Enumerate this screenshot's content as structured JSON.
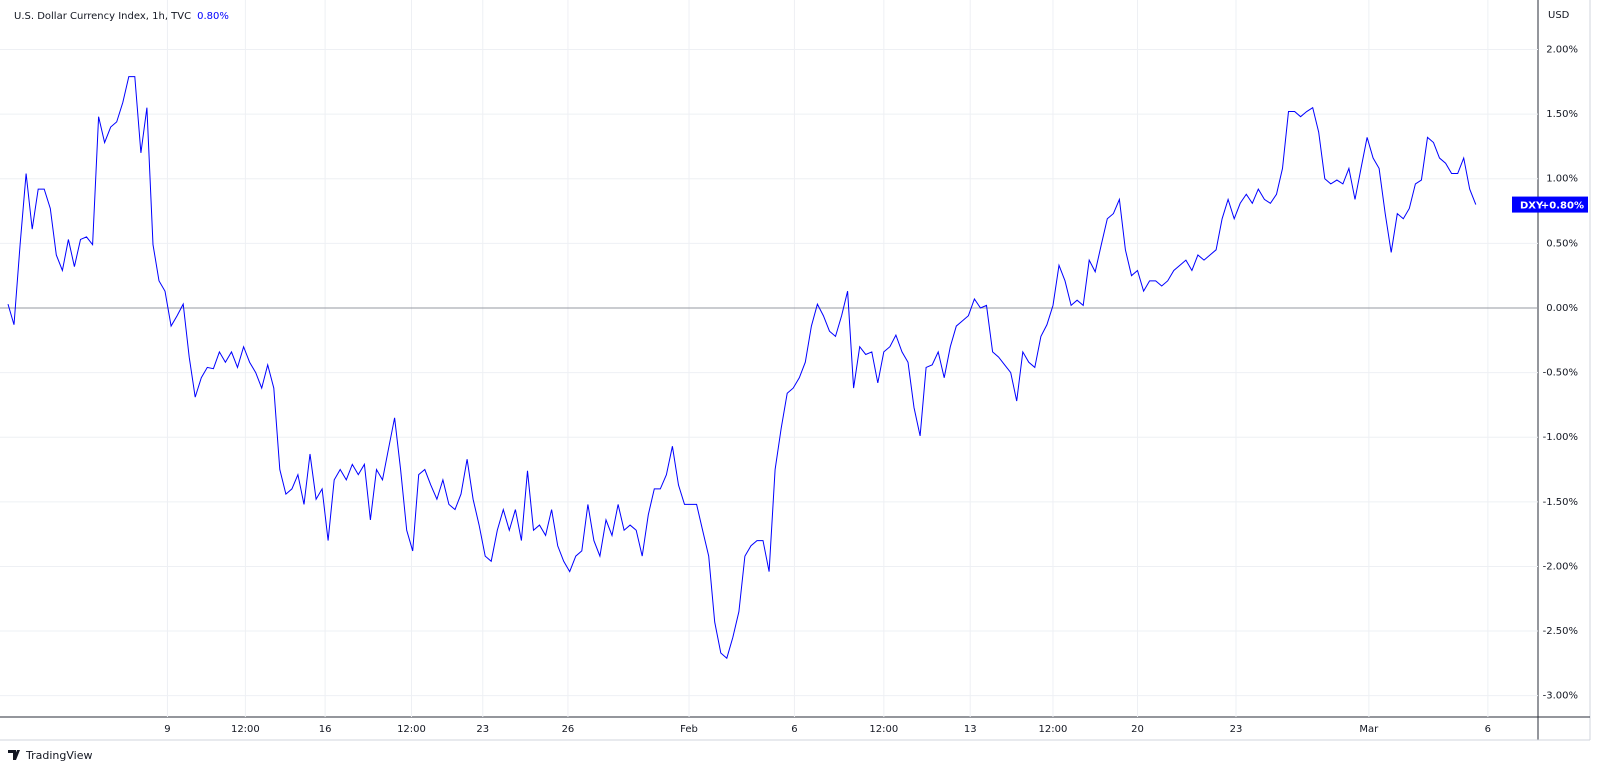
{
  "header": {
    "title": "U.S. Dollar Currency Index, 1h, TVC",
    "change": "0.80%",
    "brand": "TradingView"
  },
  "chart_data": {
    "type": "line",
    "currency": "USD",
    "series": [
      {
        "name": "DXY",
        "color": "#0000ff",
        "last_label": {
          "value": 0.8,
          "label": "+0.80%"
        },
        "values": [
          0.03,
          -0.13,
          0.49,
          1.04,
          0.61,
          0.92,
          0.92,
          0.77,
          0.41,
          0.29,
          0.53,
          0.32,
          0.53,
          0.55,
          0.49,
          1.48,
          1.28,
          1.4,
          1.44,
          1.59,
          1.79,
          1.79,
          1.2,
          1.55,
          0.49,
          0.21,
          0.13,
          -0.14,
          -0.06,
          0.03,
          -0.38,
          -0.69,
          -0.54,
          -0.46,
          -0.47,
          -0.34,
          -0.42,
          -0.34,
          -0.46,
          -0.3,
          -0.42,
          -0.5,
          -0.62,
          -0.44,
          -0.62,
          -1.25,
          -1.44,
          -1.4,
          -1.29,
          -1.52,
          -1.13,
          -1.48,
          -1.4,
          -1.8,
          -1.33,
          -1.25,
          -1.33,
          -1.21,
          -1.29,
          -1.21,
          -1.64,
          -1.25,
          -1.33,
          -1.09,
          -0.85,
          -1.25,
          -1.72,
          -1.88,
          -1.29,
          -1.25,
          -1.37,
          -1.48,
          -1.33,
          -1.52,
          -1.56,
          -1.44,
          -1.17,
          -1.48,
          -1.68,
          -1.92,
          -1.96,
          -1.72,
          -1.56,
          -1.72,
          -1.56,
          -1.8,
          -1.26,
          -1.72,
          -1.68,
          -1.76,
          -1.56,
          -1.84,
          -1.96,
          -2.04,
          -1.92,
          -1.88,
          -1.52,
          -1.8,
          -1.92,
          -1.64,
          -1.76,
          -1.52,
          -1.72,
          -1.68,
          -1.72,
          -1.92,
          -1.6,
          -1.4,
          -1.4,
          -1.29,
          -1.07,
          -1.37,
          -1.52,
          -1.52,
          -1.52,
          -1.72,
          -1.92,
          -2.43,
          -2.67,
          -2.71,
          -2.55,
          -2.35,
          -1.92,
          -1.84,
          -1.8,
          -1.8,
          -2.04,
          -1.25,
          -0.93,
          -0.66,
          -0.62,
          -0.54,
          -0.42,
          -0.14,
          0.03,
          -0.06,
          -0.18,
          -0.22,
          -0.06,
          0.13,
          -0.62,
          -0.3,
          -0.36,
          -0.34,
          -0.58,
          -0.34,
          -0.3,
          -0.21,
          -0.34,
          -0.42,
          -0.77,
          -0.99,
          -0.46,
          -0.44,
          -0.34,
          -0.54,
          -0.3,
          -0.14,
          -0.1,
          -0.06,
          0.07,
          0.0,
          0.02,
          -0.34,
          -0.38,
          -0.44,
          -0.5,
          -0.72,
          -0.34,
          -0.42,
          -0.46,
          -0.22,
          -0.13,
          0.02,
          0.33,
          0.21,
          0.02,
          0.06,
          0.02,
          0.37,
          0.28,
          0.49,
          0.69,
          0.73,
          0.84,
          0.45,
          0.25,
          0.29,
          0.13,
          0.21,
          0.21,
          0.17,
          0.21,
          0.29,
          0.33,
          0.37,
          0.29,
          0.41,
          0.37,
          0.41,
          0.45,
          0.69,
          0.84,
          0.69,
          0.81,
          0.88,
          0.81,
          0.92,
          0.84,
          0.81,
          0.88,
          1.08,
          1.52,
          1.52,
          1.48,
          1.52,
          1.55,
          1.36,
          1.0,
          0.96,
          0.99,
          0.96,
          1.08,
          0.84,
          1.08,
          1.32,
          1.16,
          1.08,
          0.73,
          0.43,
          0.73,
          0.69,
          0.77,
          0.96,
          0.99,
          1.32,
          1.28,
          1.16,
          1.12,
          1.04,
          1.04,
          1.16,
          0.92,
          0.8
        ]
      }
    ],
    "baseline": 0,
    "ylim": [
      -3.165,
      2.352
    ],
    "yticks": [
      {
        "value": 2,
        "label": "2.00%"
      },
      {
        "value": 1.5,
        "label": "1.50%"
      },
      {
        "value": 1,
        "label": "1.00%"
      },
      {
        "value": 0.5,
        "label": "0.50%"
      },
      {
        "value": 0,
        "label": "0.00%"
      },
      {
        "value": -0.5,
        "label": "-0.50%"
      },
      {
        "value": -1,
        "label": "-1.00%"
      },
      {
        "value": -1.5,
        "label": "-1.50%"
      },
      {
        "value": -2,
        "label": "-2.00%"
      },
      {
        "value": -2.5,
        "label": "-2.50%"
      },
      {
        "value": -3,
        "label": "-3.00%"
      }
    ],
    "xlim": [
      0,
      253.3
    ],
    "xticks": [
      {
        "value": 26.4,
        "label": "9"
      },
      {
        "value": 39.3,
        "label": "12:00"
      },
      {
        "value": 52.5,
        "label": "16"
      },
      {
        "value": 66.8,
        "label": "12:00"
      },
      {
        "value": 78.6,
        "label": "23"
      },
      {
        "value": 92.7,
        "label": "26"
      },
      {
        "value": 112.75,
        "label": "Feb"
      },
      {
        "value": 130.2,
        "label": "6"
      },
      {
        "value": 145,
        "label": "12:00"
      },
      {
        "value": 159.3,
        "label": "13"
      },
      {
        "value": 173,
        "label": "12:00"
      },
      {
        "value": 187,
        "label": "20"
      },
      {
        "value": 203.3,
        "label": "23"
      },
      {
        "value": 225.3,
        "label": "Mar"
      },
      {
        "value": 245,
        "label": "6"
      }
    ],
    "grid": true
  }
}
